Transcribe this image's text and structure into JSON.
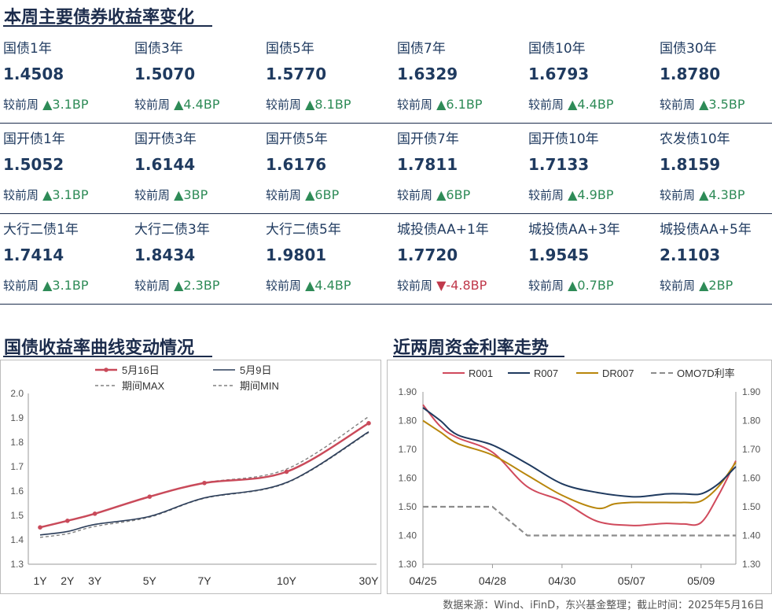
{
  "sections": {
    "weekly_title": "本周主要债券收益率变化",
    "curve_title": "国债收益率曲线变动情况",
    "funding_title": "近两周资金利率走势"
  },
  "change_prefix": "较前周",
  "up_color": "#2e8b57",
  "down_color": "#c0394b",
  "rows": [
    [
      {
        "name": "国债1年",
        "value": "1.4508",
        "change": "▲3.1BP",
        "dir": "up"
      },
      {
        "name": "国债3年",
        "value": "1.5070",
        "change": "▲4.4BP",
        "dir": "up"
      },
      {
        "name": "国债5年",
        "value": "1.5770",
        "change": "▲8.1BP",
        "dir": "up"
      },
      {
        "name": "国债7年",
        "value": "1.6329",
        "change": "▲6.1BP",
        "dir": "up"
      },
      {
        "name": "国债10年",
        "value": "1.6793",
        "change": "▲4.4BP",
        "dir": "up"
      },
      {
        "name": "国债30年",
        "value": "1.8780",
        "change": "▲3.5BP",
        "dir": "up"
      }
    ],
    [
      {
        "name": "国开债1年",
        "value": "1.5052",
        "change": "▲3.1BP",
        "dir": "up"
      },
      {
        "name": "国开债3年",
        "value": "1.6144",
        "change": "▲3BP",
        "dir": "up"
      },
      {
        "name": "国开债5年",
        "value": "1.6176",
        "change": "▲6BP",
        "dir": "up"
      },
      {
        "name": "国开债7年",
        "value": "1.7811",
        "change": "▲6BP",
        "dir": "up"
      },
      {
        "name": "国开债10年",
        "value": "1.7133",
        "change": "▲4.9BP",
        "dir": "up"
      },
      {
        "name": "农发债10年",
        "value": "1.8159",
        "change": "▲4.3BP",
        "dir": "up"
      }
    ],
    [
      {
        "name": "大行二债1年",
        "value": "1.7414",
        "change": "▲3.1BP",
        "dir": "up"
      },
      {
        "name": "大行二债3年",
        "value": "1.8434",
        "change": "▲2.3BP",
        "dir": "up"
      },
      {
        "name": "大行二债5年",
        "value": "1.9801",
        "change": "▲4.4BP",
        "dir": "up"
      },
      {
        "name": "城投债AA+1年",
        "value": "1.7720",
        "change": "▼-4.8BP",
        "dir": "down"
      },
      {
        "name": "城投债AA+3年",
        "value": "1.9545",
        "change": "▲0.7BP",
        "dir": "up"
      },
      {
        "name": "城投债AA+5年",
        "value": "2.1103",
        "change": "▲2BP",
        "dir": "up"
      }
    ]
  ],
  "footer": "数据来源：Wind、iFinD，东兴基金整理；截止时间：2025年5月16日",
  "chart_data": [
    {
      "type": "line",
      "title": "国债收益率曲线变动情况",
      "x": [
        "1Y",
        "2Y",
        "3Y",
        "5Y",
        "7Y",
        "10Y",
        "30Y"
      ],
      "x_pos": [
        1,
        2,
        3,
        5,
        7,
        10,
        13
      ],
      "ylim": [
        1.3,
        2.0
      ],
      "yticks": [
        "1.3",
        "1.4",
        "1.5",
        "1.6",
        "1.7",
        "1.8",
        "1.9",
        "2.0"
      ],
      "legend_position": "top",
      "series": [
        {
          "name": "5月16日",
          "color": "#c94a5a",
          "dash": "",
          "marker": true,
          "values": [
            1.451,
            1.478,
            1.507,
            1.577,
            1.633,
            1.679,
            1.878
          ]
        },
        {
          "name": "5月9日",
          "color": "#2c3e5a",
          "dash": "",
          "marker": false,
          "values": [
            1.42,
            1.434,
            1.463,
            1.496,
            1.572,
            1.635,
            1.843
          ]
        },
        {
          "name": "期间MAX",
          "color": "#808080",
          "dash": "4,3",
          "marker": false,
          "values": [
            1.452,
            1.479,
            1.508,
            1.578,
            1.634,
            1.69,
            1.905
          ]
        },
        {
          "name": "期间MIN",
          "color": "#808080",
          "dash": "4,3",
          "marker": false,
          "values": [
            1.41,
            1.425,
            1.455,
            1.493,
            1.57,
            1.633,
            1.84
          ]
        }
      ]
    },
    {
      "type": "line",
      "title": "近两周资金利率走势",
      "x": [
        "04/25",
        "04/28",
        "04/30",
        "05/07",
        "05/09"
      ],
      "x_pos": [
        0,
        2,
        4,
        6,
        8
      ],
      "x_max": 9,
      "ylim": [
        1.3,
        1.9
      ],
      "yticks": [
        "1.30",
        "1.40",
        "1.50",
        "1.60",
        "1.70",
        "1.80",
        "1.90"
      ],
      "legend_position": "top",
      "series": [
        {
          "name": "R001",
          "color": "#d04a5c",
          "dash": "",
          "pts": [
            [
              0,
              1.855
            ],
            [
              0.5,
              1.78
            ],
            [
              1,
              1.74
            ],
            [
              2,
              1.69
            ],
            [
              3,
              1.57
            ],
            [
              4,
              1.52
            ],
            [
              5,
              1.45
            ],
            [
              6,
              1.435
            ],
            [
              6.5,
              1.438
            ],
            [
              7,
              1.442
            ],
            [
              7.5,
              1.44
            ],
            [
              8,
              1.445
            ],
            [
              8.5,
              1.54
            ],
            [
              9,
              1.66
            ]
          ]
        },
        {
          "name": "R007",
          "color": "#1f3a5f",
          "dash": "",
          "pts": [
            [
              0,
              1.845
            ],
            [
              0.5,
              1.8
            ],
            [
              1,
              1.75
            ],
            [
              2,
              1.715
            ],
            [
              3,
              1.65
            ],
            [
              4,
              1.58
            ],
            [
              5,
              1.55
            ],
            [
              6,
              1.535
            ],
            [
              6.5,
              1.538
            ],
            [
              7,
              1.545
            ],
            [
              7.5,
              1.545
            ],
            [
              8,
              1.545
            ],
            [
              8.5,
              1.58
            ],
            [
              9,
              1.64
            ]
          ]
        },
        {
          "name": "DR007",
          "color": "#b8860b",
          "dash": "",
          "pts": [
            [
              0,
              1.8
            ],
            [
              0.5,
              1.76
            ],
            [
              1,
              1.72
            ],
            [
              2,
              1.68
            ],
            [
              3,
              1.61
            ],
            [
              4,
              1.54
            ],
            [
              5,
              1.495
            ],
            [
              5.5,
              1.51
            ],
            [
              6,
              1.515
            ],
            [
              6.5,
              1.515
            ],
            [
              7,
              1.515
            ],
            [
              7.5,
              1.515
            ],
            [
              8,
              1.52
            ],
            [
              8.5,
              1.57
            ],
            [
              9,
              1.655
            ]
          ]
        },
        {
          "name": "OMO7D利率",
          "color": "#8c8c8c",
          "dash": "7,4",
          "pts": [
            [
              0,
              1.5
            ],
            [
              2,
              1.5
            ],
            [
              3,
              1.4
            ],
            [
              9,
              1.4
            ]
          ]
        }
      ]
    }
  ]
}
